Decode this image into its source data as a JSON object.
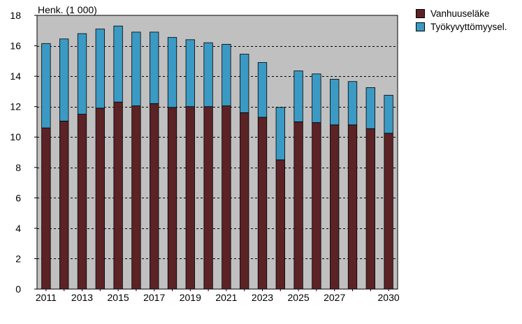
{
  "chart_data": {
    "type": "bar",
    "stacked": true,
    "unit_label": "Henk. (1 000)",
    "x": [
      "2011",
      "2012",
      "2013",
      "2014",
      "2015",
      "2016",
      "2017",
      "2018",
      "2019",
      "2020",
      "2021",
      "2022",
      "2023",
      "2024",
      "2025",
      "2026",
      "2027",
      "2028",
      "2029",
      "2030"
    ],
    "x_tick_labels": [
      "2011",
      "2013",
      "2015",
      "2017",
      "2019",
      "2021",
      "2023",
      "2025",
      "2027",
      "2030"
    ],
    "ylim": [
      0,
      18
    ],
    "y_ticks": [
      0,
      2,
      4,
      6,
      8,
      10,
      12,
      14,
      16,
      18
    ],
    "grid": "horizontal dashed",
    "plot_background": "#c0c0c0",
    "legend_position": "top-right",
    "series": [
      {
        "name": "Vanhuuseläke",
        "color": "#5b2326",
        "values": [
          10.6,
          11.05,
          11.5,
          11.9,
          12.3,
          12.05,
          12.2,
          11.95,
          12.0,
          12.0,
          12.05,
          11.6,
          11.3,
          8.5,
          11.0,
          10.95,
          10.8,
          10.8,
          10.55,
          10.25
        ]
      },
      {
        "name": "Työkyvyttömyysel.",
        "color": "#3a9ac4",
        "values": [
          5.55,
          5.4,
          5.3,
          5.2,
          5.0,
          4.85,
          4.7,
          4.6,
          4.4,
          4.2,
          4.05,
          3.85,
          3.6,
          3.45,
          3.35,
          3.2,
          3.0,
          2.85,
          2.7,
          2.5
        ]
      }
    ]
  }
}
